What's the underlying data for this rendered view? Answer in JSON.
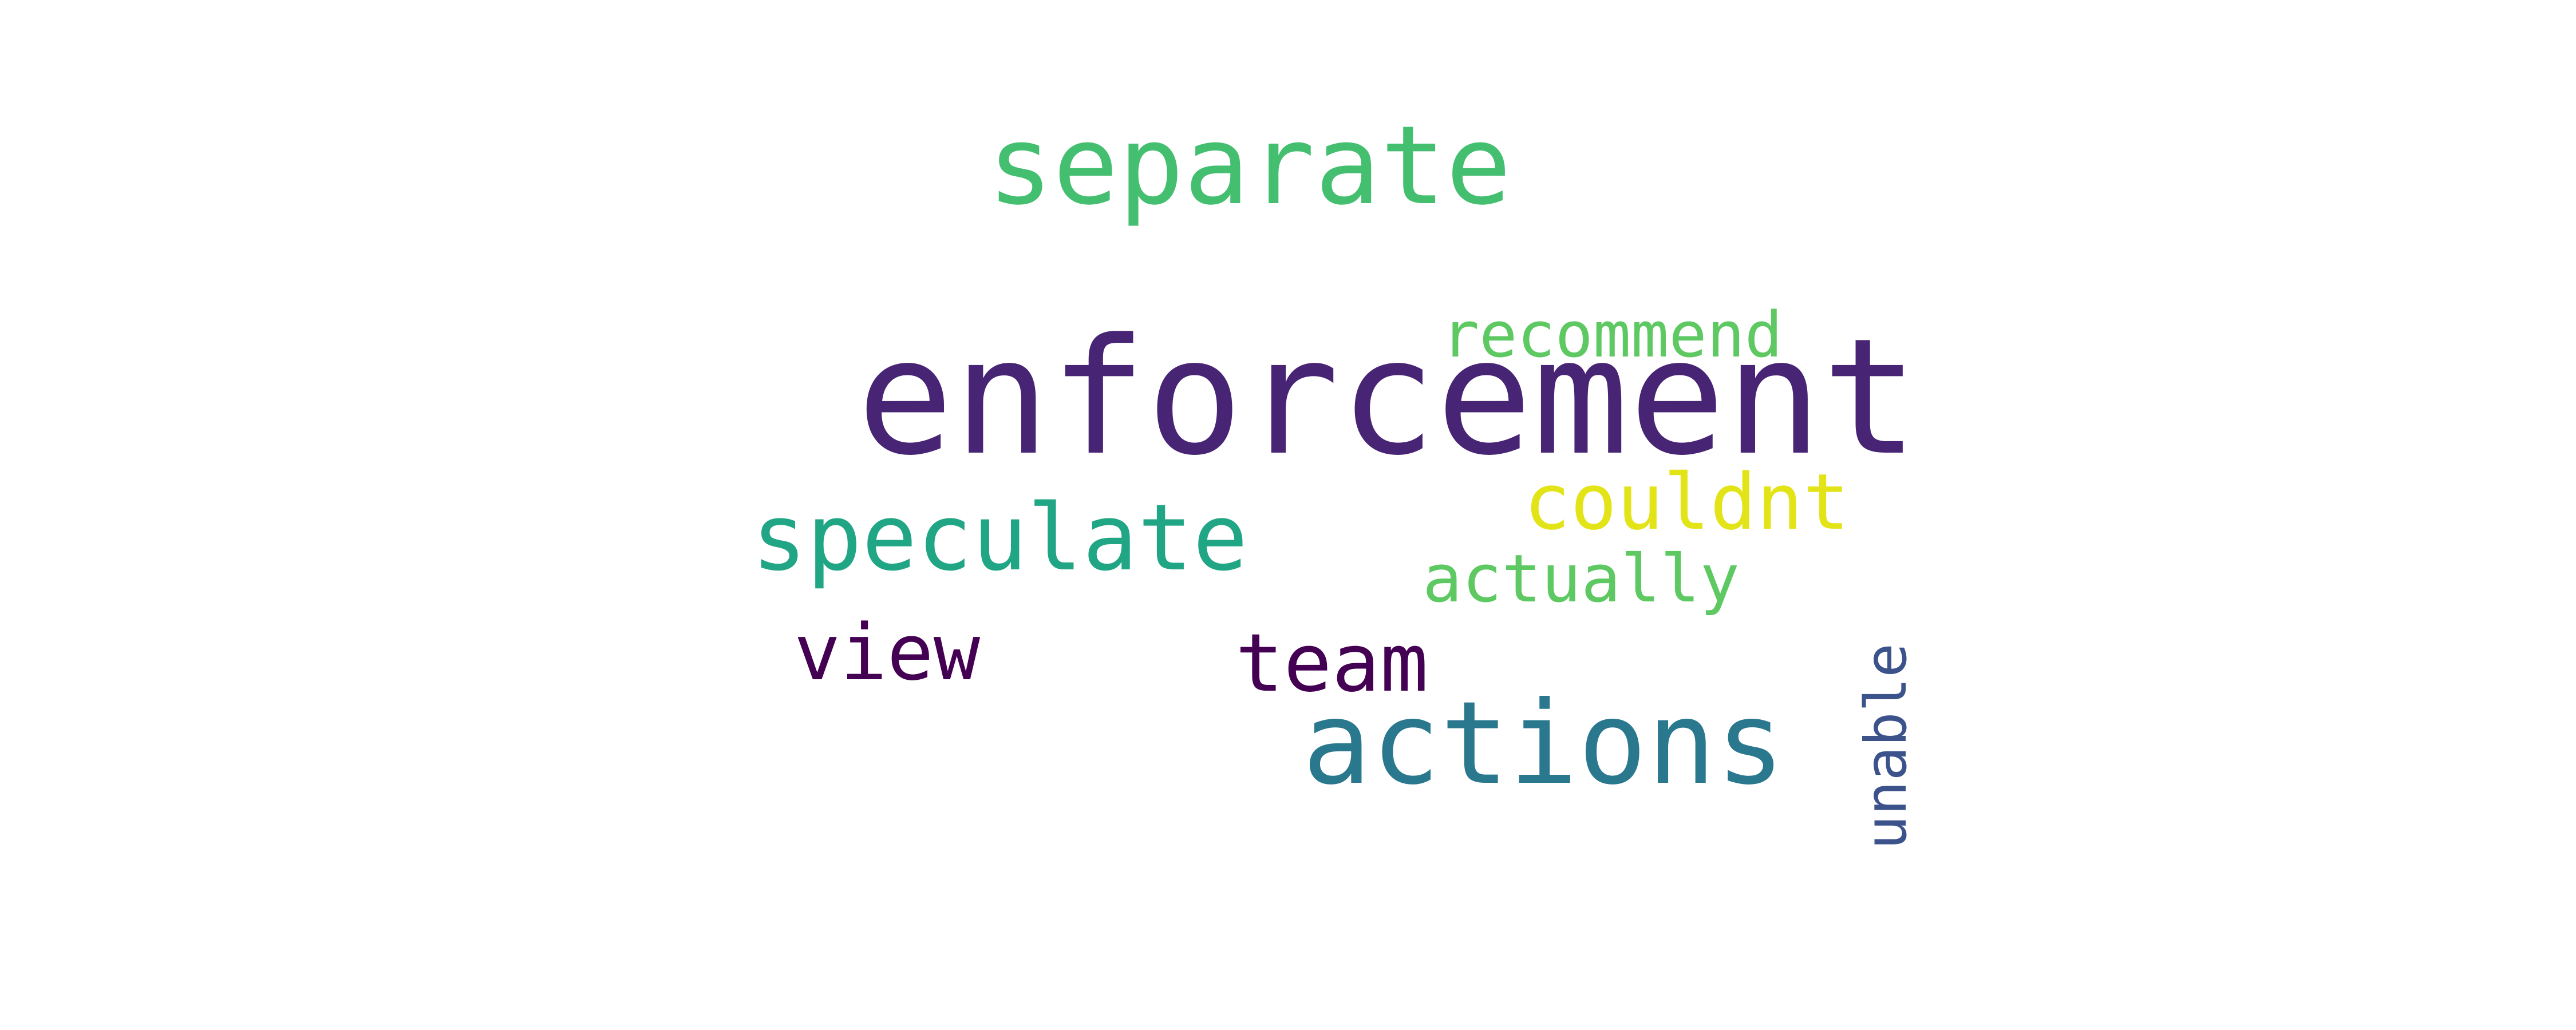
{
  "words": [
    {
      "id": "enforcement",
      "text": "enforcement",
      "color": "#482475"
    },
    {
      "id": "separate",
      "text": "separate",
      "color": "#44bf70"
    },
    {
      "id": "actions",
      "text": "actions",
      "color": "#2a788e"
    },
    {
      "id": "speculate",
      "text": "speculate",
      "color": "#21a685"
    },
    {
      "id": "couldnt",
      "text": "couldnt",
      "color": "#e2e418"
    },
    {
      "id": "team",
      "text": "team",
      "color": "#440154"
    },
    {
      "id": "view",
      "text": "view",
      "color": "#440154"
    },
    {
      "id": "recommend",
      "text": "recommend",
      "color": "#5ec962"
    },
    {
      "id": "actually",
      "text": "actually",
      "color": "#5ec962"
    },
    {
      "id": "unable",
      "text": "unable",
      "color": "#3b528b"
    }
  ]
}
